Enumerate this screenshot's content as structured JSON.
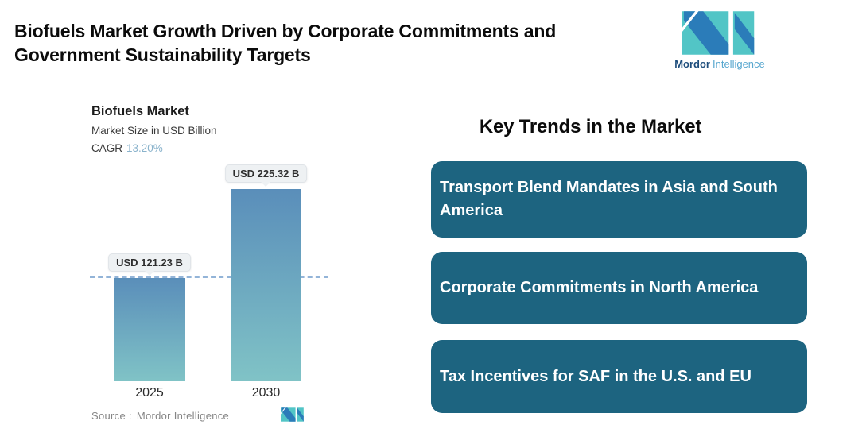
{
  "header": {
    "title": "Biofuels Market Growth Driven by Corporate Commitments and Government Sustainability Targets",
    "brand": {
      "name_bold": "Mordor",
      "name_light": "Intelligence"
    }
  },
  "chart": {
    "title": "Biofuels Market",
    "subtitle": "Market Size in USD Billion",
    "cagr_label": "CAGR",
    "cagr_value": "13.20%",
    "source_label": "Source :",
    "source_name": "Mordor Intelligence"
  },
  "chart_data": {
    "type": "bar",
    "title": "Biofuels Market",
    "subtitle": "Market Size in USD Billion",
    "unit": "USD Billion",
    "cagr_pct": 13.2,
    "categories": [
      "2025",
      "2030"
    ],
    "values": [
      121.23,
      225.32
    ],
    "value_labels": [
      "USD 121.23 B",
      "USD 225.32 B"
    ],
    "ylim": [
      0,
      240
    ],
    "grid": false,
    "reference_line_value": 121.23,
    "reference_line_style": "dashed",
    "reference_line_color": "#93b4d8",
    "bar_color_top": "#5a8eba",
    "bar_color_bottom": "#80c3c6"
  },
  "trends": {
    "heading": "Key Trends in the Market",
    "card_color": "#1d6480",
    "items": [
      {
        "label": "Transport Blend Mandates in Asia and South America"
      },
      {
        "label": "Corporate Commitments in North America"
      },
      {
        "label": "Tax Incentives for SAF in the U.S. and EU"
      }
    ]
  },
  "colors": {
    "background": "#ffffff",
    "title_text": "#0b0b0b",
    "cagr_accent": "#8ab3cc",
    "tooltip_bg": "#eef1f3",
    "brand_dark_blue": "#2b7cb9",
    "brand_teal": "#52c5c6",
    "brand_name_dark": "#1d4d7c",
    "brand_name_light": "#58a7cf"
  }
}
